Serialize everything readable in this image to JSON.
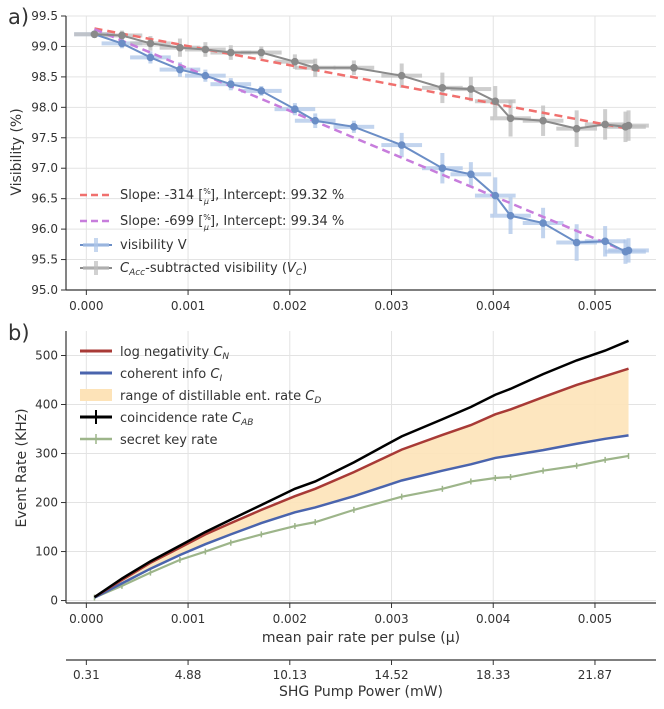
{
  "colors": {
    "red_fit": "#f0706e",
    "purple_fit": "#c77ddc",
    "vis_blue": "#6b8ec6",
    "vis_blue_err": "#aec6e8",
    "vacc_gray": "#8a8a8a",
    "vacc_err": "#bdbdbd",
    "neg_red": "#a83a36",
    "coh_blue": "#4a64ad",
    "fill_orange": "#fde3b8",
    "coinc_black": "#000000",
    "skr_green": "#9db58a"
  },
  "chart_data": [
    {
      "type": "line",
      "panel_label": "a)",
      "xlabel": "",
      "ylabel": "Visibility (%)",
      "xlim": [
        -0.0002,
        0.0056
      ],
      "ylim": [
        95.0,
        99.5
      ],
      "xticks": [
        0.0,
        0.001,
        0.002,
        0.003,
        0.004,
        0.005
      ],
      "xtick_labels": [
        "0.000",
        "0.001",
        "0.002",
        "0.003",
        "0.004",
        "0.005"
      ],
      "yticks": [
        95.0,
        95.5,
        96.0,
        96.5,
        97.0,
        97.5,
        98.0,
        98.5,
        99.0,
        99.5
      ],
      "ytick_labels": [
        "95.0",
        "95.5",
        "96.0",
        "96.5",
        "97.0",
        "97.5",
        "98.0",
        "98.5",
        "99.0",
        "99.5"
      ],
      "grid": true,
      "series": [
        {
          "name": "visibility V",
          "x": [
            8e-05,
            0.00035,
            0.00063,
            0.00092,
            0.00117,
            0.00142,
            0.00172,
            0.00205,
            0.00225,
            0.00263,
            0.0031,
            0.0035,
            0.00378,
            0.00402,
            0.00417,
            0.00449,
            0.00482,
            0.0051,
            0.0053,
            0.00533
          ],
          "y": [
            99.2,
            99.05,
            98.82,
            98.62,
            98.52,
            98.38,
            98.27,
            97.97,
            97.78,
            97.68,
            97.38,
            97.0,
            96.9,
            96.55,
            96.22,
            96.1,
            95.78,
            95.8,
            95.63,
            95.65
          ],
          "xerr": [
            0.0002,
            0.0002,
            0.0002,
            0.0002,
            0.0002,
            0.0002,
            0.0002,
            0.0002,
            0.0002,
            0.0002,
            0.0002,
            0.0002,
            0.0002,
            0.0002,
            0.0002,
            0.0002,
            0.0002,
            0.0002,
            0.0002,
            0.0002
          ],
          "yerr": [
            0.05,
            0.08,
            0.1,
            0.12,
            0.1,
            0.1,
            0.08,
            0.1,
            0.12,
            0.1,
            0.2,
            0.25,
            0.2,
            0.3,
            0.3,
            0.25,
            0.3,
            0.25,
            0.2,
            0.2
          ]
        },
        {
          "name": "C_Acc-subtracted visibility (V_C)",
          "x": [
            8e-05,
            0.00035,
            0.00063,
            0.00092,
            0.00117,
            0.00142,
            0.00172,
            0.00205,
            0.00225,
            0.00263,
            0.0031,
            0.0035,
            0.00378,
            0.00402,
            0.00417,
            0.00449,
            0.00482,
            0.0051,
            0.0053,
            0.00533
          ],
          "y": [
            99.2,
            99.18,
            99.05,
            98.98,
            98.95,
            98.9,
            98.9,
            98.75,
            98.65,
            98.65,
            98.52,
            98.32,
            98.3,
            98.1,
            97.82,
            97.78,
            97.65,
            97.72,
            97.68,
            97.7
          ],
          "xerr": [
            0.0002,
            0.0002,
            0.0002,
            0.0002,
            0.0002,
            0.0002,
            0.0002,
            0.0002,
            0.0002,
            0.0002,
            0.0002,
            0.0002,
            0.0002,
            0.0002,
            0.0002,
            0.0002,
            0.0002,
            0.0002,
            0.0002,
            0.0002
          ],
          "yerr": [
            0.05,
            0.08,
            0.12,
            0.15,
            0.12,
            0.12,
            0.1,
            0.12,
            0.15,
            0.12,
            0.2,
            0.25,
            0.2,
            0.25,
            0.3,
            0.25,
            0.3,
            0.25,
            0.25,
            0.25
          ]
        }
      ],
      "fits": [
        {
          "name": "Slope: -314 [%/μ], Intercept: 99.32 %",
          "slope": -314,
          "intercept": 99.32,
          "x_range": [
            8e-05,
            0.00533
          ],
          "style": "dashed"
        },
        {
          "name": "Slope: -699 [%/μ], Intercept: 99.34 %",
          "slope": -699,
          "intercept": 99.34,
          "x_range": [
            8e-05,
            0.00533
          ],
          "style": "dashed"
        }
      ],
      "legend": {
        "placement": "lower-left",
        "entries": [
          {
            "label": "Slope: -314 [",
            "frac_top": "%",
            "frac_bot": "μ",
            "label_end": "], Intercept: 99.32 %"
          },
          {
            "label": "Slope: -699 [",
            "frac_top": "%",
            "frac_bot": "μ",
            "label_end": "], Intercept: 99.34 %"
          },
          {
            "label": "visibility V"
          },
          {
            "label_prefix": "C",
            "label_sub": "Acc",
            "label_mid": "-subtracted visibility (",
            "label_v": "V",
            "label_vsub": "C",
            "label_end": ")"
          }
        ]
      }
    },
    {
      "type": "line",
      "panel_label": "b)",
      "xlabel": "mean pair rate per pulse (μ)",
      "ylabel": "Event Rate (KHz)",
      "xlim": [
        -0.0002,
        0.0056
      ],
      "ylim": [
        -5,
        550
      ],
      "xticks": [
        0.0,
        0.001,
        0.002,
        0.003,
        0.004,
        0.005
      ],
      "xtick_labels": [
        "0.000",
        "0.001",
        "0.002",
        "0.003",
        "0.004",
        "0.005"
      ],
      "yticks": [
        0,
        100,
        200,
        300,
        400,
        500
      ],
      "ytick_labels": [
        "0",
        "100",
        "200",
        "300",
        "400",
        "500"
      ],
      "grid": true,
      "x": [
        8e-05,
        0.00035,
        0.00063,
        0.00092,
        0.00117,
        0.00142,
        0.00172,
        0.00205,
        0.00225,
        0.00263,
        0.0031,
        0.0035,
        0.00378,
        0.00402,
        0.00417,
        0.00449,
        0.00482,
        0.0051,
        0.00533
      ],
      "series": [
        {
          "name": "log negativity C_N",
          "values": [
            7,
            42,
            77,
            108,
            135,
            158,
            185,
            213,
            228,
            262,
            308,
            338,
            358,
            380,
            390,
            415,
            440,
            458,
            473
          ]
        },
        {
          "name": "coherent info C_I",
          "values": [
            6,
            35,
            65,
            93,
            115,
            135,
            158,
            180,
            190,
            213,
            245,
            265,
            278,
            291,
            296,
            307,
            320,
            330,
            337
          ]
        },
        {
          "name": "coincidence rate C_AB",
          "values": [
            7,
            45,
            80,
            112,
            140,
            165,
            195,
            228,
            243,
            282,
            335,
            370,
            395,
            420,
            432,
            462,
            490,
            510,
            530
          ]
        },
        {
          "name": "secret key rate",
          "values": [
            6,
            30,
            57,
            83,
            100,
            118,
            135,
            152,
            160,
            185,
            212,
            228,
            243,
            250,
            252,
            265,
            275,
            287,
            295
          ]
        }
      ],
      "fill_between": {
        "name": "range of distillable ent. rate C_D",
        "upper": "log negativity C_N",
        "lower": "coherent info C_I"
      },
      "legend": {
        "placement": "upper-left",
        "entries": [
          {
            "label": "log negativity ",
            "label_it": "C",
            "label_sub": "N"
          },
          {
            "label": "coherent info ",
            "label_it": "C",
            "label_sub": "I"
          },
          {
            "label": "range of distillable ent. rate ",
            "label_it": "C",
            "label_sub": "D"
          },
          {
            "label": "coincidence rate ",
            "label_it": "C",
            "label_sub": "AB"
          },
          {
            "label": "secret key rate"
          }
        ]
      },
      "secondary_xaxis": {
        "label": "SHG Pump Power (mW)",
        "tick_labels": [
          "0.31",
          "4.88",
          "10.13",
          "14.52",
          "18.33",
          "21.87"
        ],
        "tick_positions_mu": [
          0.0,
          0.001,
          0.002,
          0.003,
          0.004,
          0.005
        ]
      }
    }
  ]
}
